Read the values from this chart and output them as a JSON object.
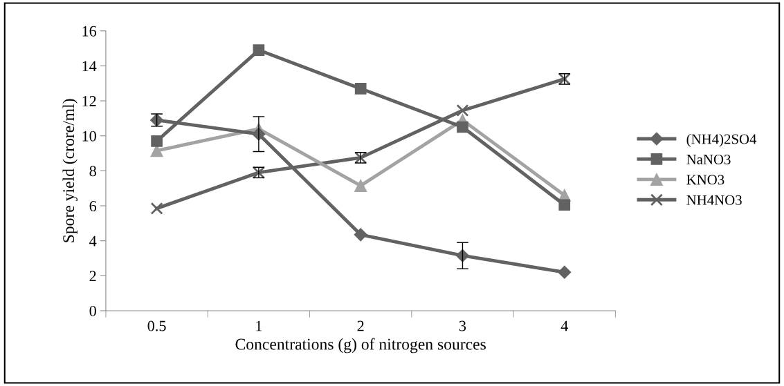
{
  "chart_data": {
    "type": "line",
    "xlabel": "Concentrations (g) of nitrogen sources",
    "ylabel": "Spore yield (crore/ml)",
    "categories": [
      "0.5",
      "1",
      "2",
      "3",
      "4"
    ],
    "ylim": [
      0,
      16
    ],
    "yticks": [
      0,
      2,
      4,
      6,
      8,
      10,
      12,
      14,
      16
    ],
    "grid": false,
    "legend": "right",
    "series": [
      {
        "name": "(NH4)2SO4",
        "color": "#626262",
        "marker": "diamond",
        "values": [
          10.9,
          10.1,
          4.35,
          3.15,
          2.2
        ],
        "errors": [
          0.35,
          1.0,
          null,
          0.75,
          null
        ]
      },
      {
        "name": "NaNO3",
        "color": "#626262",
        "marker": "square",
        "values": [
          9.7,
          14.9,
          12.7,
          10.5,
          6.05
        ]
      },
      {
        "name": "KNO3",
        "color": "#a3a3a3",
        "marker": "triangle",
        "values": [
          9.15,
          10.4,
          7.15,
          10.9,
          6.6
        ]
      },
      {
        "name": "NH4NO3",
        "color": "#626262",
        "marker": "cross",
        "values": [
          5.85,
          7.9,
          8.75,
          11.45,
          13.25
        ],
        "errors": [
          null,
          0.3,
          0.3,
          null,
          0.3
        ]
      }
    ]
  }
}
